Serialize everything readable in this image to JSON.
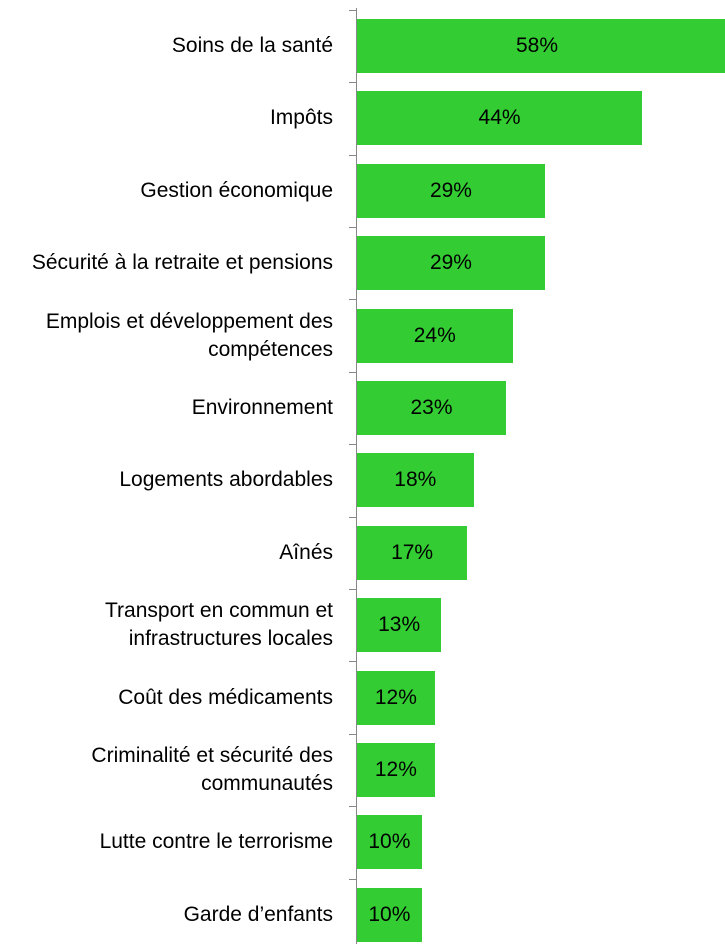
{
  "chart_data": {
    "type": "bar",
    "orientation": "horizontal",
    "color": "#33cc33",
    "categories": [
      "Soins de la santé",
      "Impôts",
      "Gestion économique",
      "Sécurité à la retraite et pensions",
      "Emplois et développement des compétences",
      "Environnement",
      "Logements abordables",
      "Aînés",
      "Transport en commun et infrastructures locales",
      "Coût des médicaments",
      "Criminalité et sécurité des communautés",
      "Lutte contre le terrorisme",
      "Garde d’enfants"
    ],
    "values": [
      58,
      44,
      29,
      29,
      24,
      23,
      18,
      17,
      13,
      12,
      12,
      10,
      10
    ],
    "value_labels": [
      "58%",
      "44%",
      "29%",
      "29%",
      "24%",
      "23%",
      "18%",
      "17%",
      "13%",
      "12%",
      "12%",
      "10%",
      "10%"
    ]
  }
}
